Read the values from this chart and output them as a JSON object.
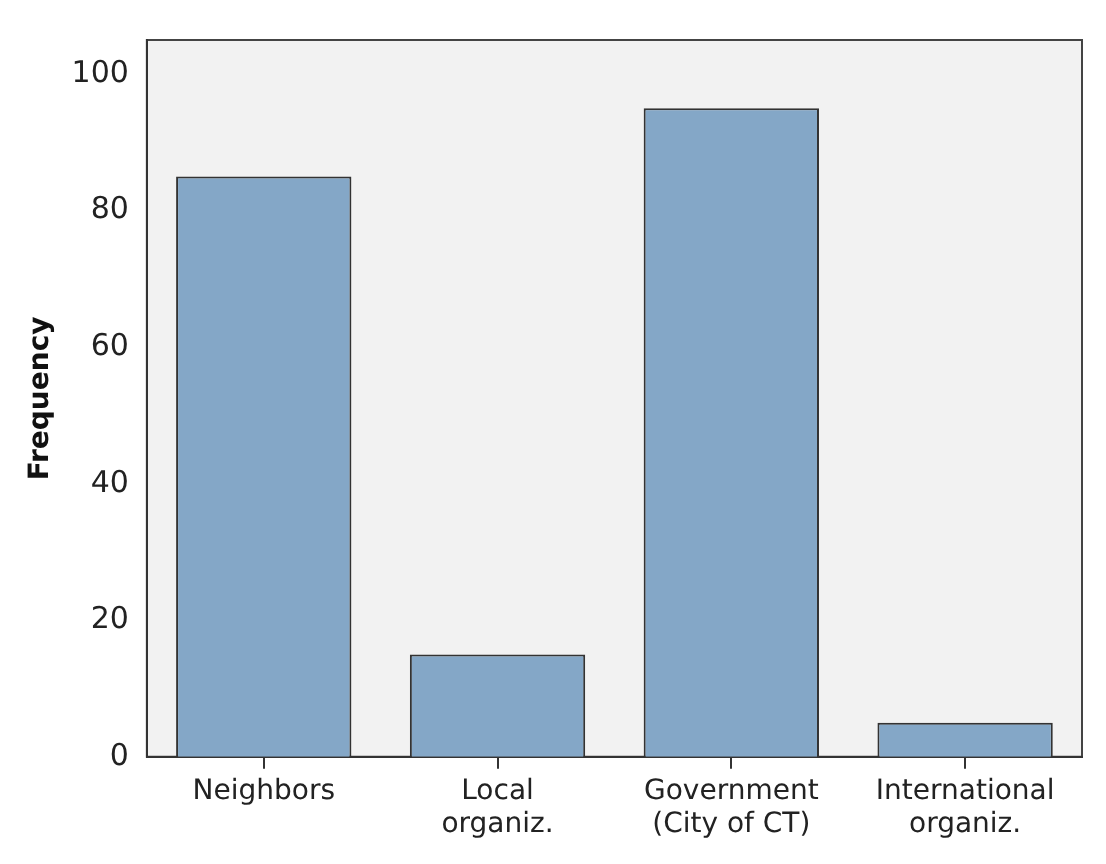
{
  "chart_data": {
    "type": "bar",
    "ylabel": "Frequency",
    "categories": [
      "Neighbors",
      "Local organiz.",
      "Government (City of CT)",
      "International organiz."
    ],
    "values": [
      85,
      15,
      95,
      5
    ],
    "color": "#84a7c7",
    "ylim": [
      0,
      105
    ],
    "yticks": [
      0,
      20,
      40,
      60,
      80,
      100
    ],
    "grid": false,
    "legend": false
  }
}
